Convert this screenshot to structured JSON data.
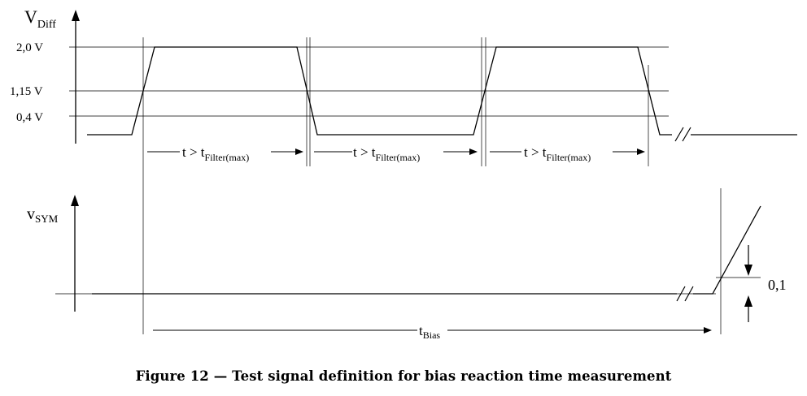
{
  "axis_top": {
    "main": "V",
    "sub": "Diff"
  },
  "axis_bottom": {
    "main": "v",
    "sub": "SYM"
  },
  "levels": [
    {
      "label": "2,0 V"
    },
    {
      "label": "1,15 V"
    },
    {
      "label": "0,4 V"
    }
  ],
  "filter_intervals": [
    {
      "prefix": "t > t",
      "sub": "Filter(max)"
    },
    {
      "prefix": "t > t",
      "sub": "Filter(max)"
    },
    {
      "prefix": "t > t",
      "sub": "Filter(max)"
    }
  ],
  "offset_label": "0,1",
  "t_bias": {
    "main": "t",
    "sub": "Bias"
  },
  "caption": "Figure 12 — Test signal definition for bias reaction time measurement"
}
